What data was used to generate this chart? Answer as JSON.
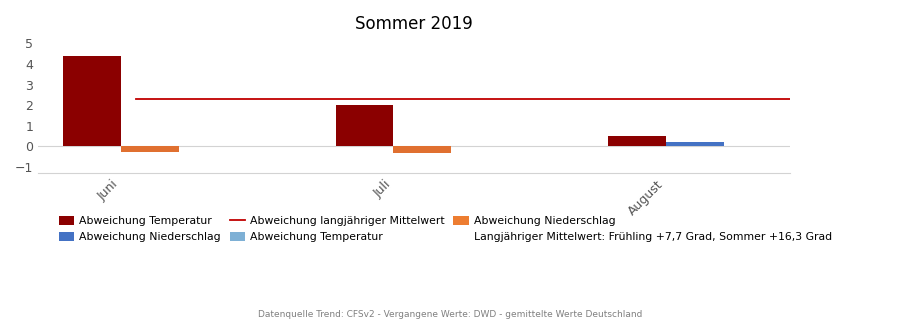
{
  "title": "Sommer 2019",
  "months": [
    "Juni",
    "Juli",
    "August"
  ],
  "x_positions": [
    0.7,
    4.0,
    7.3
  ],
  "temp_past": [
    4.4,
    2.0,
    0.5
  ],
  "precip_past": [
    -0.3,
    -0.35,
    0.0
  ],
  "temp_forecast": [
    0.0,
    0.0,
    0.0
  ],
  "precip_forecast": [
    0.0,
    0.0,
    0.0
  ],
  "aug_forecast_temp": 0.18,
  "reference_line": 2.3,
  "bar_width": 0.7,
  "color_temp_past": "#8B0000",
  "color_precip_past": "#E07030",
  "color_temp_forecast": "#4472C4",
  "color_reference": "#C00000",
  "ylim": [
    -1.3,
    5.3
  ],
  "yticks": [
    -1,
    0,
    1,
    2,
    3,
    4,
    5
  ],
  "legend_row1": [
    "Abweichung Temperatur",
    "Abweichung Niederschlag",
    "Abweichung langjähriger Mittelwert"
  ],
  "legend_row2": [
    "Abweichung Temperatur",
    "Abweichung Niederschlag",
    "Langjähriger Mittelwert: Frühling +7,7 Grad, Sommer +16,3 Grad"
  ],
  "color_temp_forecast_legend": "#4472C4",
  "color_precip_forecast_legend": "#ED7D31",
  "footnote": "Datenquelle Trend: CFSv2 - Vergangene Werte: DWD - gemittelte Werte Deutschland"
}
